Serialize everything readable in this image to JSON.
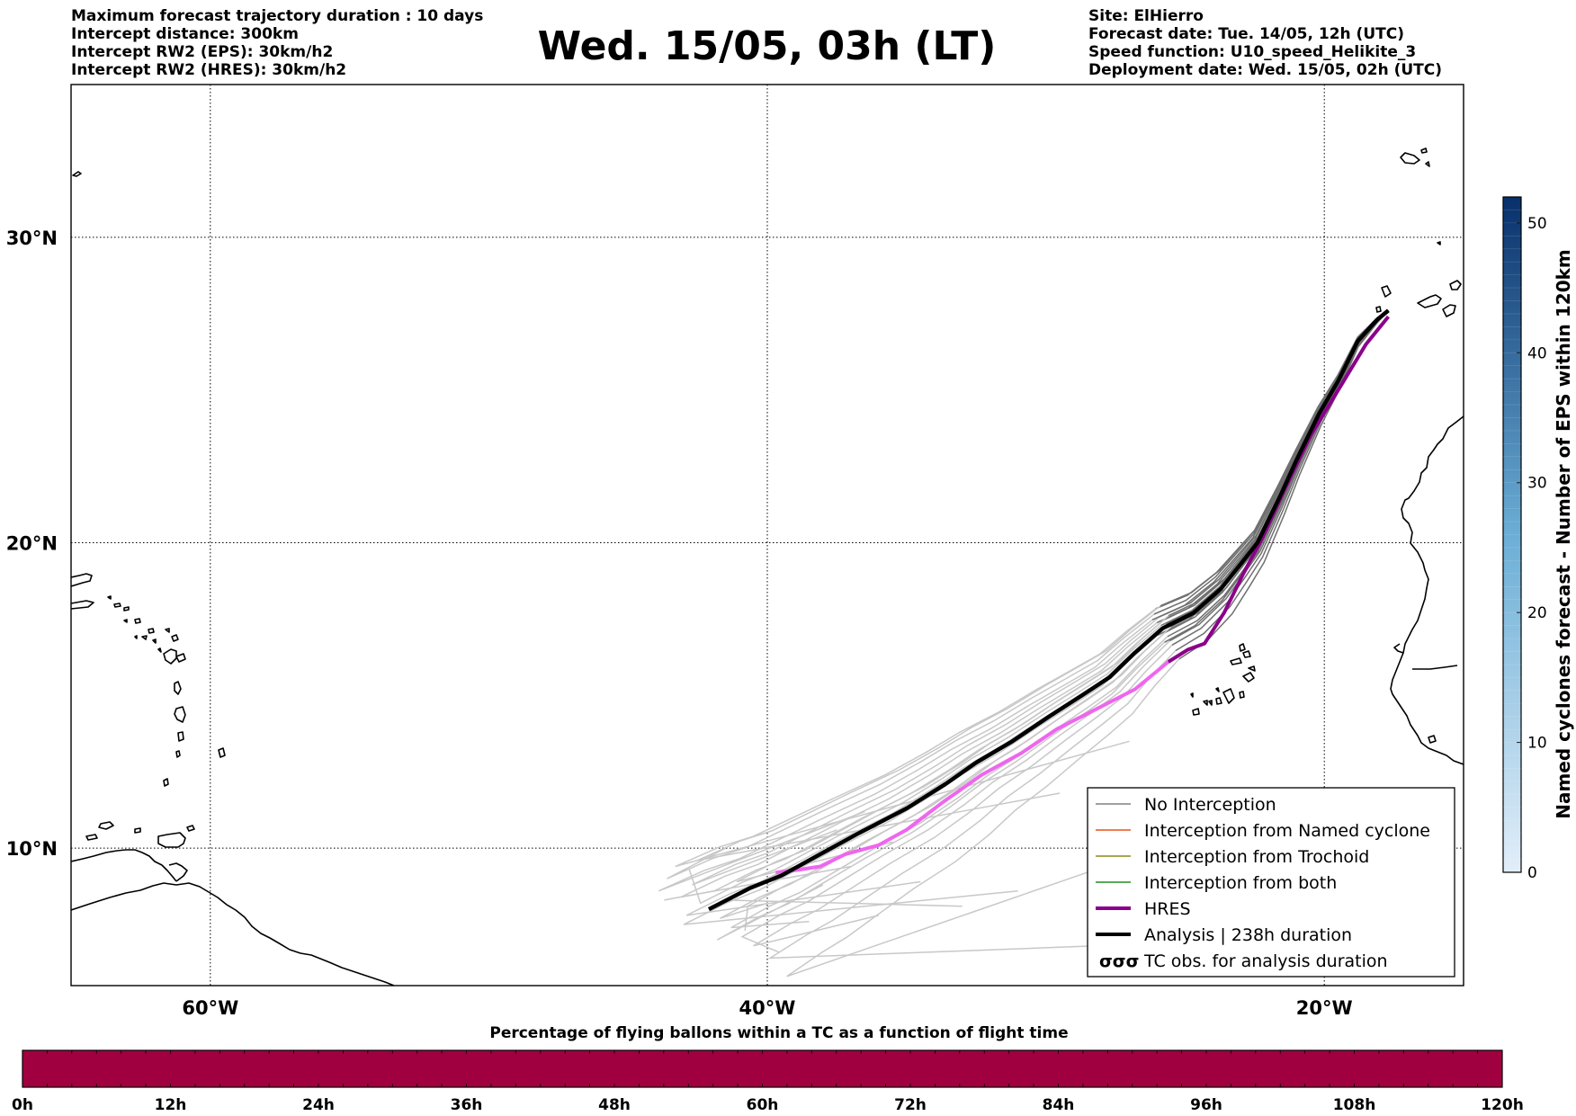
{
  "header": {
    "left_lines": [
      "Maximum forecast trajectory duration : 10 days",
      "Intercept distance: 300km",
      "Intercept RW2 (EPS):  30km/h2",
      "Intercept RW2 (HRES): 30km/h2"
    ],
    "title": "Wed. 15/05, 03h (LT)",
    "right_lines": [
      "Site: ElHierro",
      "Forecast date: Tue. 14/05, 12h (UTC)",
      "Speed function: U10_speed_Helikite_3",
      "Deployment date: Wed. 15/05, 02h (UTC)"
    ]
  },
  "map": {
    "lon_range": [
      -65,
      -15
    ],
    "lat_range": [
      5.5,
      35
    ],
    "lat_ticks": [
      {
        "value": 30,
        "label": "30°N"
      },
      {
        "value": 20,
        "label": "20°N"
      },
      {
        "value": 10,
        "label": "10°N"
      }
    ],
    "lon_ticks": [
      {
        "value": -60,
        "label": "60°W"
      },
      {
        "value": -40,
        "label": "40°W"
      },
      {
        "value": -20,
        "label": "20°W"
      }
    ],
    "colors": {
      "no_interception": "#808080",
      "named_cyclone": "#e8521a",
      "trochoid": "#8a8a1a",
      "both": "#228b22",
      "hres": "#8b008b",
      "hres_light": "#ee66ee",
      "analysis": "#000000",
      "ensemble_light": "#c8c8c8",
      "ensemble_dark": "#707070"
    },
    "analysis_track": [
      [
        -17.7,
        27.6
      ],
      [
        -18.1,
        27.3
      ],
      [
        -18.8,
        26.6
      ],
      [
        -19.5,
        25.3
      ],
      [
        -20.2,
        24.2
      ],
      [
        -21.0,
        22.7
      ],
      [
        -21.6,
        21.5
      ],
      [
        -22.4,
        20.0
      ],
      [
        -23.0,
        19.3
      ],
      [
        -23.7,
        18.5
      ],
      [
        -24.7,
        17.7
      ],
      [
        -25.8,
        17.2
      ],
      [
        -26.8,
        16.4
      ],
      [
        -27.7,
        15.6
      ],
      [
        -28.7,
        15.0
      ],
      [
        -29.9,
        14.3
      ],
      [
        -31.2,
        13.5
      ],
      [
        -32.5,
        12.8
      ],
      [
        -33.6,
        12.1
      ],
      [
        -35.0,
        11.3
      ],
      [
        -36.7,
        10.5
      ],
      [
        -38.1,
        9.8
      ],
      [
        -39.5,
        9.1
      ],
      [
        -40.6,
        8.7
      ],
      [
        -42.1,
        8.0
      ]
    ],
    "hres_track_dark": [
      [
        -17.7,
        27.4
      ],
      [
        -18.5,
        26.5
      ],
      [
        -19.5,
        25.0
      ],
      [
        -20.5,
        23.5
      ],
      [
        -21.4,
        21.8
      ],
      [
        -22.2,
        20.2
      ],
      [
        -22.9,
        19.0
      ],
      [
        -23.6,
        17.7
      ],
      [
        -24.3,
        16.7
      ],
      [
        -24.9,
        16.5
      ],
      [
        -25.6,
        16.1
      ]
    ],
    "hres_track_light": [
      [
        -25.6,
        16.1
      ],
      [
        -26.8,
        15.2
      ],
      [
        -28.3,
        14.5
      ],
      [
        -29.6,
        13.9
      ],
      [
        -30.9,
        13.1
      ],
      [
        -32.3,
        12.4
      ],
      [
        -33.7,
        11.5
      ],
      [
        -35.0,
        10.6
      ],
      [
        -36.0,
        10.1
      ],
      [
        -37.2,
        9.8
      ],
      [
        -38.1,
        9.4
      ],
      [
        -38.8,
        9.3
      ],
      [
        -39.7,
        9.2
      ]
    ],
    "ensemble_tracks": [
      {
        "shift": [
          -1.0,
          0.4
        ],
        "end": [
          -37.0,
          9.4
        ]
      },
      {
        "shift": [
          -0.6,
          0.8
        ],
        "end": [
          -37.5,
          10.6
        ]
      },
      {
        "shift": [
          0.4,
          -0.3
        ],
        "end": [
          -40.0,
          8.2
        ]
      },
      {
        "shift": [
          0.8,
          -0.6
        ],
        "end": [
          -38.5,
          7.6
        ]
      },
      {
        "shift": [
          -1.5,
          1.0
        ],
        "end": [
          -41.5,
          10.0
        ]
      },
      {
        "shift": [
          1.2,
          -0.9
        ],
        "end": [
          -39.6,
          6.6
        ]
      },
      {
        "shift": [
          -0.3,
          0.2
        ],
        "end": [
          -42.8,
          9.3
        ]
      },
      {
        "shift": [
          0.2,
          0.6
        ],
        "end": [
          -43.7,
          8.3
        ]
      },
      {
        "shift": [
          1.6,
          -1.2
        ],
        "end": [
          -36.0,
          7.8
        ]
      },
      {
        "shift": [
          -0.8,
          -0.2
        ],
        "end": [
          -34.5,
          8.9
        ]
      },
      {
        "shift": [
          0.6,
          0.3
        ],
        "end": [
          -33.0,
          8.1
        ]
      },
      {
        "shift": [
          2.2,
          -1.6
        ],
        "end": [
          -28.2,
          6.8
        ]
      },
      {
        "shift": [
          2.8,
          -2.2
        ],
        "end": [
          -26.0,
          10.0
        ]
      },
      {
        "shift": [
          -1.2,
          1.4
        ],
        "end": [
          -27.0,
          13.5
        ]
      },
      {
        "shift": [
          -0.4,
          1.6
        ],
        "end": [
          -29.5,
          11.8
        ]
      },
      {
        "shift": [
          1.0,
          0.9
        ],
        "end": [
          -35.5,
          10.2
        ]
      },
      {
        "shift": [
          -0.9,
          -0.5
        ],
        "end": [
          -31.0,
          8.6
        ]
      },
      {
        "shift": [
          0.3,
          -1.0
        ],
        "end": [
          -38.0,
          8.8
        ]
      },
      {
        "shift": [
          1.4,
          0.1
        ],
        "end": [
          -40.8,
          7.3
        ]
      },
      {
        "shift": [
          -1.8,
          0.6
        ],
        "end": [
          -36.5,
          11.2
        ]
      }
    ]
  },
  "legend": {
    "items": [
      {
        "label": "No Interception",
        "style": "no_interception"
      },
      {
        "label": "Interception from Named cyclone",
        "style": "named_cyclone"
      },
      {
        "label": "Interception from Trochoid",
        "style": "trochoid"
      },
      {
        "label": "Interception from both",
        "style": "both"
      },
      {
        "label": "HRES",
        "style": "hres"
      },
      {
        "label": "Analysis | 238h duration",
        "style": "analysis"
      },
      {
        "label": "TC obs. for analysis duration",
        "style": "tc_symbol"
      }
    ]
  },
  "colorbar_right": {
    "label": "Named cyclones forecast - Number of EPS within 120km",
    "min": 0,
    "max": 52,
    "ticks": [
      0,
      10,
      20,
      30,
      40,
      50
    ],
    "color_low": "#e2eef9",
    "color_high": "#08306b"
  },
  "colorbar_bottom": {
    "title": "Percentage of flying ballons within a TC as a function of flight time",
    "ticks": [
      "0h",
      "12h",
      "24h",
      "36h",
      "48h",
      "60h",
      "72h",
      "84h",
      "96h",
      "108h",
      "120h"
    ],
    "fill_color": "#a00040",
    "segments": 60
  }
}
